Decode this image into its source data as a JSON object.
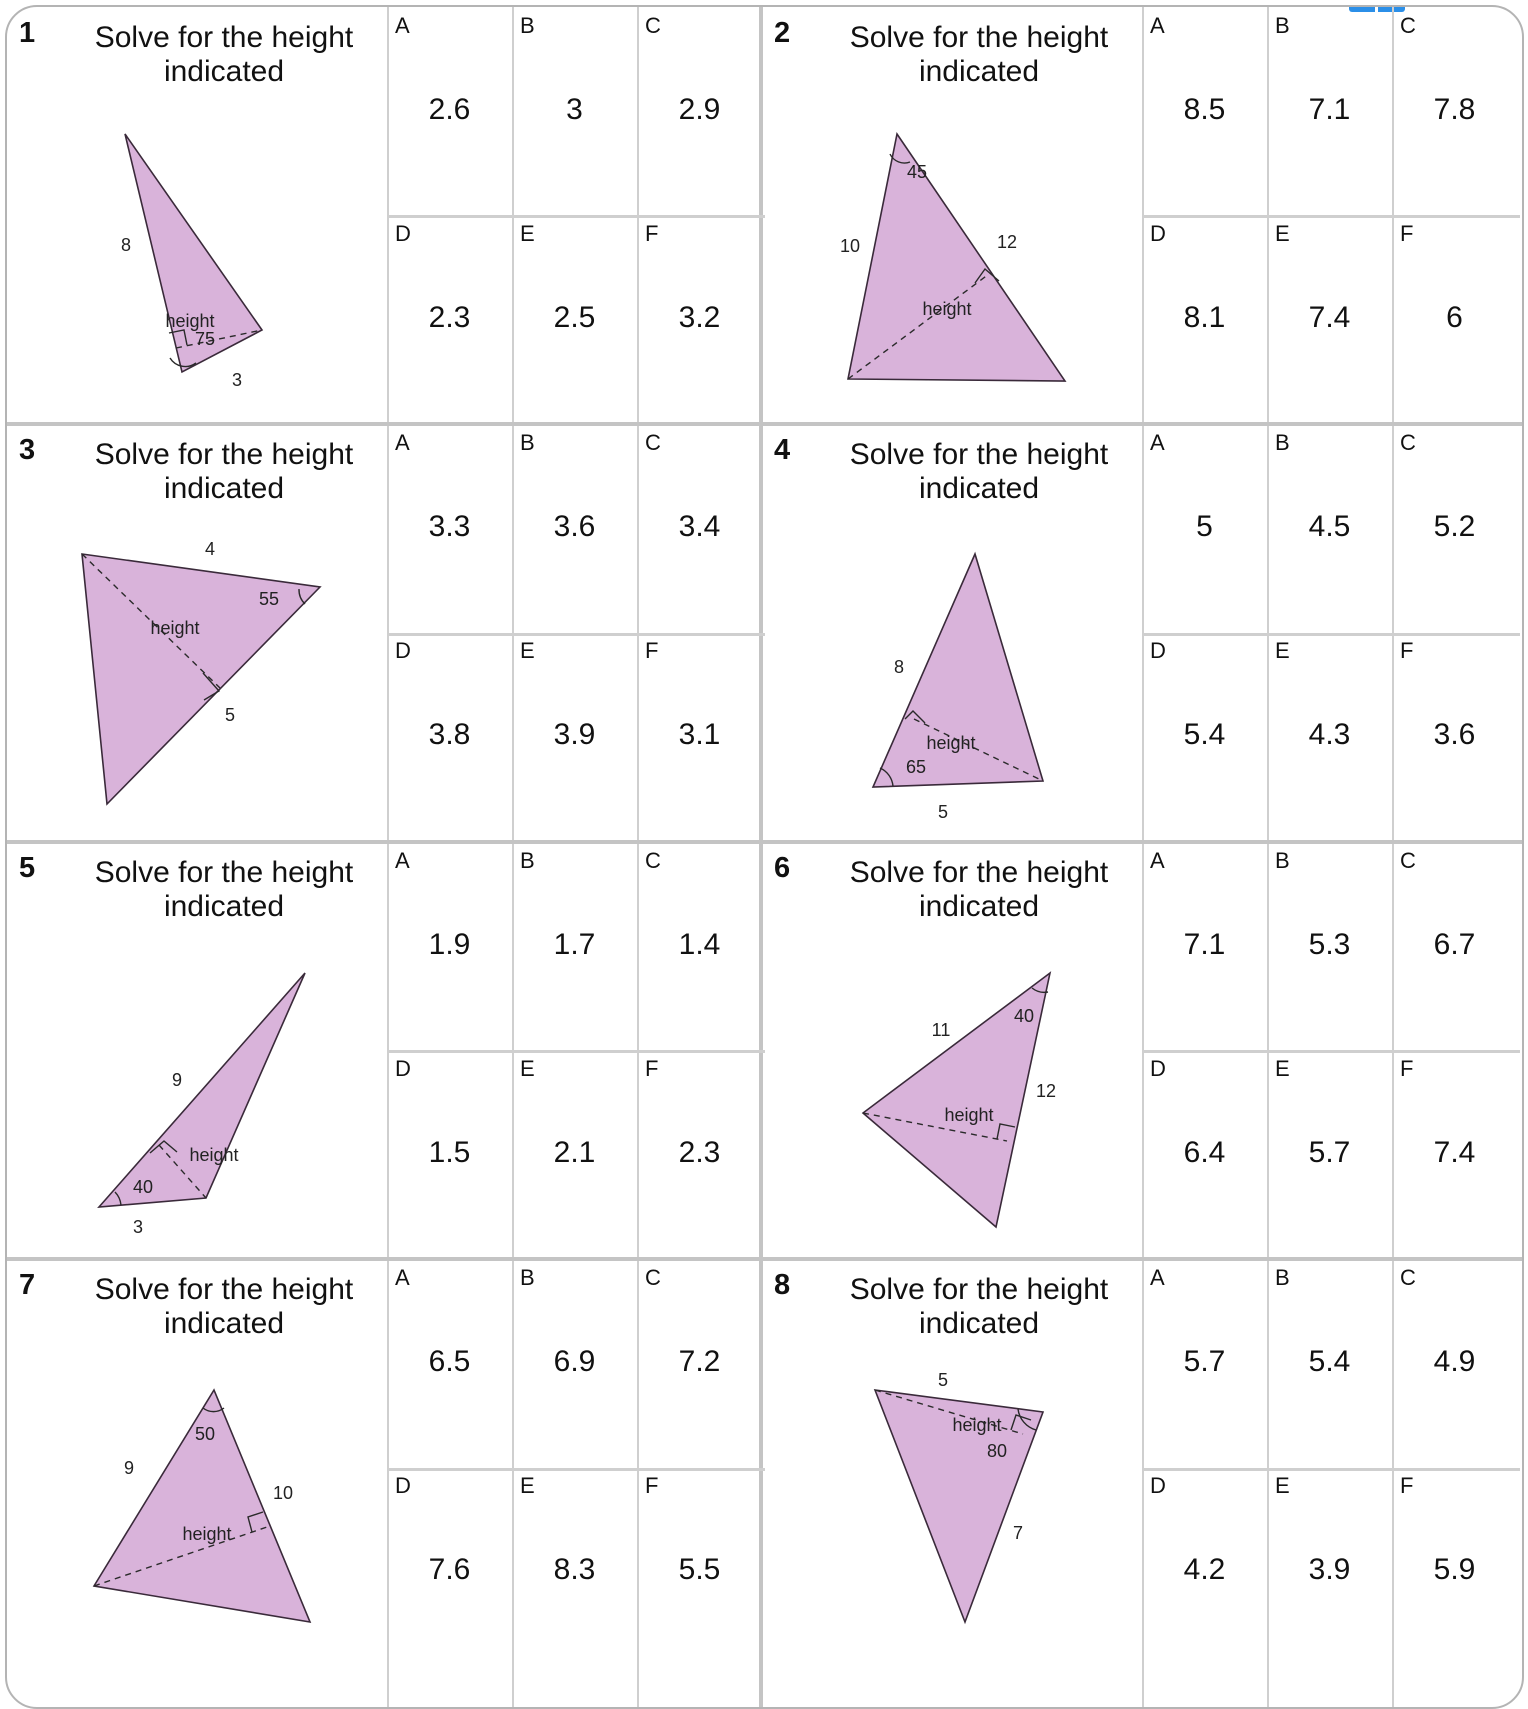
{
  "colors": {
    "triangle_fill": "#d9b3da",
    "triangle_stroke": "#3a2a3a",
    "grid_line": "#cfcfcf",
    "accent_tab": "#2b8fe8"
  },
  "problems": [
    {
      "number": "1",
      "prompt": "Solve for the height indicated",
      "labels": [
        "8",
        "height",
        "75",
        "3"
      ],
      "choices": [
        {
          "letter": "A",
          "value": "2.6"
        },
        {
          "letter": "B",
          "value": "3"
        },
        {
          "letter": "C",
          "value": "2.9"
        },
        {
          "letter": "D",
          "value": "2.3"
        },
        {
          "letter": "E",
          "value": "2.5"
        },
        {
          "letter": "F",
          "value": "3.2"
        }
      ]
    },
    {
      "number": "2",
      "prompt": "Solve for the height indicated",
      "labels": [
        "45",
        "10",
        "12",
        "height"
      ],
      "choices": [
        {
          "letter": "A",
          "value": "8.5"
        },
        {
          "letter": "B",
          "value": "7.1"
        },
        {
          "letter": "C",
          "value": "7.8"
        },
        {
          "letter": "D",
          "value": "8.1"
        },
        {
          "letter": "E",
          "value": "7.4"
        },
        {
          "letter": "F",
          "value": "6"
        }
      ]
    },
    {
      "number": "3",
      "prompt": "Solve for the height indicated",
      "labels": [
        "4",
        "55",
        "height",
        "5"
      ],
      "choices": [
        {
          "letter": "A",
          "value": "3.3"
        },
        {
          "letter": "B",
          "value": "3.6"
        },
        {
          "letter": "C",
          "value": "3.4"
        },
        {
          "letter": "D",
          "value": "3.8"
        },
        {
          "letter": "E",
          "value": "3.9"
        },
        {
          "letter": "F",
          "value": "3.1"
        }
      ]
    },
    {
      "number": "4",
      "prompt": "Solve for the height indicated",
      "labels": [
        "8",
        "height",
        "65",
        "5"
      ],
      "choices": [
        {
          "letter": "A",
          "value": "5"
        },
        {
          "letter": "B",
          "value": "4.5"
        },
        {
          "letter": "C",
          "value": "5.2"
        },
        {
          "letter": "D",
          "value": "5.4"
        },
        {
          "letter": "E",
          "value": "4.3"
        },
        {
          "letter": "F",
          "value": "3.6"
        }
      ]
    },
    {
      "number": "5",
      "prompt": "Solve for the height indicated",
      "labels": [
        "9",
        "height",
        "40",
        "3"
      ],
      "choices": [
        {
          "letter": "A",
          "value": "1.9"
        },
        {
          "letter": "B",
          "value": "1.7"
        },
        {
          "letter": "C",
          "value": "1.4"
        },
        {
          "letter": "D",
          "value": "1.5"
        },
        {
          "letter": "E",
          "value": "2.1"
        },
        {
          "letter": "F",
          "value": "2.3"
        }
      ]
    },
    {
      "number": "6",
      "prompt": "Solve for the height indicated",
      "labels": [
        "11",
        "40",
        "12",
        "height"
      ],
      "choices": [
        {
          "letter": "A",
          "value": "7.1"
        },
        {
          "letter": "B",
          "value": "5.3"
        },
        {
          "letter": "C",
          "value": "6.7"
        },
        {
          "letter": "D",
          "value": "6.4"
        },
        {
          "letter": "E",
          "value": "5.7"
        },
        {
          "letter": "F",
          "value": "7.4"
        }
      ]
    },
    {
      "number": "7",
      "prompt": "Solve for the height indicated",
      "labels": [
        "50",
        "9",
        "10",
        "height"
      ],
      "choices": [
        {
          "letter": "A",
          "value": "6.5"
        },
        {
          "letter": "B",
          "value": "6.9"
        },
        {
          "letter": "C",
          "value": "7.2"
        },
        {
          "letter": "D",
          "value": "7.6"
        },
        {
          "letter": "E",
          "value": "8.3"
        },
        {
          "letter": "F",
          "value": "5.5"
        }
      ]
    },
    {
      "number": "8",
      "prompt": "Solve for the height indicated",
      "labels": [
        "5",
        "height",
        "80",
        "7"
      ],
      "choices": [
        {
          "letter": "A",
          "value": "5.7"
        },
        {
          "letter": "B",
          "value": "5.4"
        },
        {
          "letter": "C",
          "value": "4.9"
        },
        {
          "letter": "D",
          "value": "4.2"
        },
        {
          "letter": "E",
          "value": "3.9"
        },
        {
          "letter": "F",
          "value": "5.9"
        }
      ]
    }
  ]
}
